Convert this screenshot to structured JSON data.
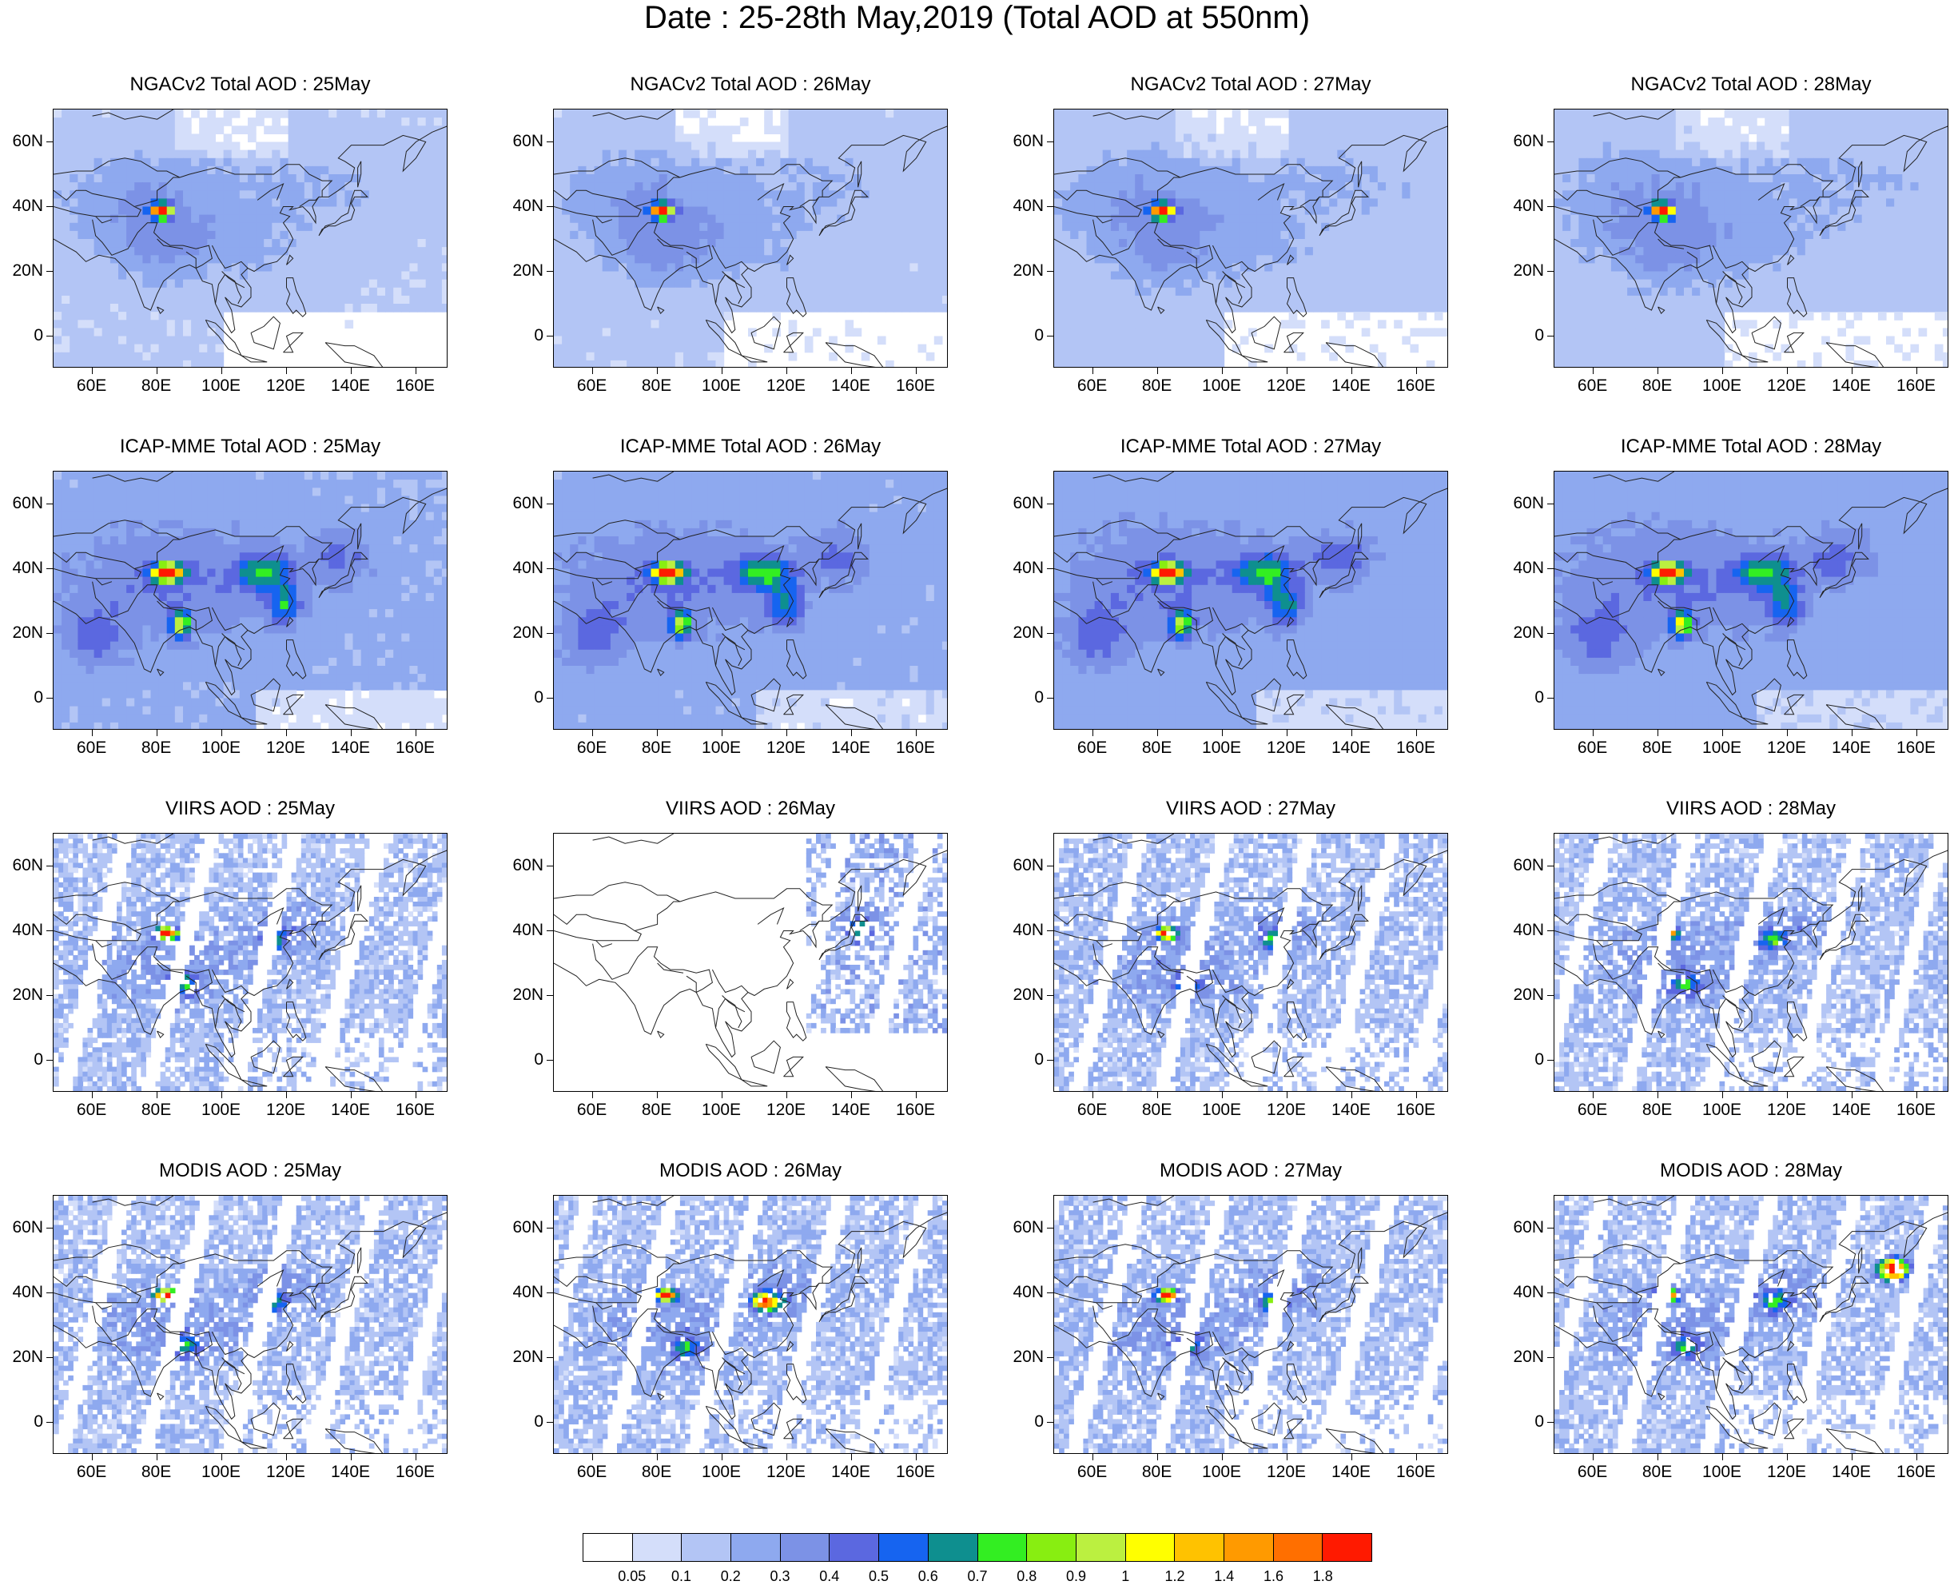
{
  "title": "Date : 25-28th May,2019 (Total AOD at 550nm)",
  "panels": [
    [
      "NGACv2 Total AOD : 25May",
      "NGACv2 Total AOD : 26May",
      "NGACv2 Total AOD : 27May",
      "NGACv2 Total AOD : 28May"
    ],
    [
      "ICAP-MME Total AOD : 25May",
      "ICAP-MME Total AOD : 26May",
      "ICAP-MME Total AOD : 27May",
      "ICAP-MME Total AOD : 28May"
    ],
    [
      "VIIRS AOD : 25May",
      "VIIRS AOD : 26May",
      "VIIRS AOD : 27May",
      "VIIRS AOD : 28May"
    ],
    [
      "MODIS AOD : 25May",
      "MODIS AOD : 26May",
      "MODIS AOD : 27May",
      "MODIS AOD : 28May"
    ]
  ],
  "lat_labels": [
    "60N",
    "40N",
    "20N",
    "0"
  ],
  "lon_labels": [
    "60E",
    "80E",
    "100E",
    "120E",
    "140E",
    "160E"
  ],
  "colorbar": {
    "labels": [
      "0.05",
      "0.1",
      "0.2",
      "0.3",
      "0.4",
      "0.5",
      "0.6",
      "0.7",
      "0.8",
      "0.9",
      "1",
      "1.2",
      "1.4",
      "1.6",
      "1.8"
    ],
    "colors": [
      "#ffffff",
      "#d4defa",
      "#b3c5f5",
      "#8ea9ef",
      "#7c92e6",
      "#5b68e0",
      "#1664f0",
      "#0e8f8f",
      "#33ee22",
      "#88ee11",
      "#bbf040",
      "#ffff00",
      "#ffc200",
      "#ff9a00",
      "#ff6f00",
      "#ff1a00"
    ]
  }
}
